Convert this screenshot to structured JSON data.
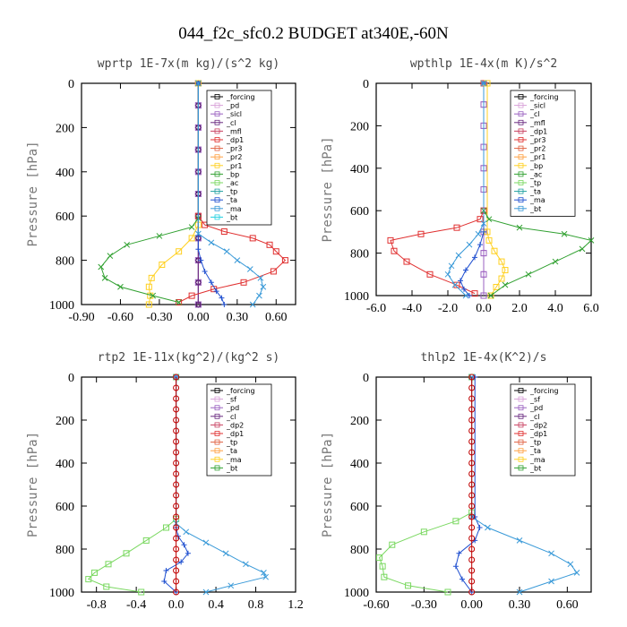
{
  "figure_title": "044_f2c_sfc0.2  BUDGET at340E,-60N",
  "chart_data": [
    {
      "type": "line",
      "title": "wprtp  1E-7x(m kg)/(s^2 kg)",
      "ylabel": "Pressure [hPa]",
      "xlim": [
        -0.9,
        0.75
      ],
      "ylim": [
        1000,
        0
      ],
      "xticks": [
        "-0.90",
        "-0.60",
        "-0.30",
        "0.00",
        "0.30",
        "0.60"
      ],
      "xtick_values": [
        -0.9,
        -0.6,
        -0.3,
        0.0,
        0.3,
        0.6
      ],
      "yticks": [
        "0",
        "200",
        "400",
        "600",
        "800",
        "1000"
      ],
      "ytick_values": [
        0,
        200,
        400,
        600,
        800,
        1000
      ],
      "legend": [
        "_forcing",
        "_pd",
        "_sicl",
        "_cl",
        "_mfl",
        "_dp1",
        "_pr3",
        "_pr2",
        "_pr1",
        "_bp",
        "_ac",
        "_tp",
        "_ta",
        "_ma",
        "_bt"
      ],
      "series": [
        {
          "name": "_forcing",
          "color": "#000000",
          "marker": "o",
          "x": [
            0,
            0,
            0,
            0,
            0,
            0,
            0,
            0,
            0,
            0,
            0
          ],
          "y": [
            0,
            100,
            200,
            300,
            400,
            500,
            600,
            700,
            800,
            900,
            1000
          ]
        },
        {
          "name": "_pd",
          "color": "#d8a0d8",
          "marker": "s",
          "x": [
            0,
            0,
            0,
            0,
            0,
            0,
            0,
            0,
            0,
            0,
            0
          ],
          "y": [
            0,
            100,
            200,
            300,
            400,
            500,
            600,
            700,
            800,
            900,
            1000
          ]
        },
        {
          "name": "_sicl",
          "color": "#9a60c0",
          "marker": "s",
          "x": [
            0,
            0,
            0,
            0,
            0,
            0,
            0,
            0,
            0,
            0,
            0
          ],
          "y": [
            0,
            100,
            200,
            300,
            400,
            500,
            600,
            700,
            800,
            900,
            1000
          ]
        },
        {
          "name": "_cl",
          "color": "#6a2a80",
          "marker": "d",
          "x": [
            0,
            0,
            0,
            0,
            0,
            0,
            0,
            0,
            0,
            0,
            0
          ],
          "y": [
            0,
            100,
            200,
            300,
            400,
            500,
            600,
            700,
            800,
            900,
            1000
          ]
        },
        {
          "name": "_dp1",
          "color": "#e03030",
          "marker": "s",
          "x": [
            0,
            0,
            0.05,
            0.2,
            0.42,
            0.55,
            0.6,
            0.67,
            0.58,
            0.35,
            0.12,
            -0.05,
            -0.15
          ],
          "y": [
            0,
            600,
            640,
            670,
            700,
            730,
            760,
            800,
            850,
            900,
            930,
            960,
            990
          ]
        },
        {
          "name": "_pr1",
          "color": "#ffd020",
          "marker": "s",
          "x": [
            0,
            0,
            -0.05,
            -0.15,
            -0.28,
            -0.36,
            -0.38,
            -0.37,
            -0.38
          ],
          "y": [
            0,
            640,
            700,
            760,
            820,
            880,
            920,
            960,
            1000
          ]
        },
        {
          "name": "_bp",
          "color": "#30a030",
          "marker": "x",
          "x": [
            0,
            0,
            -0.05,
            -0.3,
            -0.55,
            -0.68,
            -0.75,
            -0.72,
            -0.6,
            -0.35,
            -0.15
          ],
          "y": [
            0,
            610,
            650,
            690,
            730,
            780,
            830,
            880,
            920,
            960,
            990
          ]
        },
        {
          "name": "_ta",
          "color": "#2050d0",
          "marker": "+",
          "x": [
            0,
            0,
            0.02,
            0.05,
            0.1,
            0.14,
            0.18,
            0.2
          ],
          "y": [
            0,
            750,
            800,
            850,
            900,
            940,
            970,
            1000
          ]
        },
        {
          "name": "_ma",
          "color": "#3a9ad8",
          "marker": "x",
          "x": [
            0,
            0,
            0.1,
            0.22,
            0.3,
            0.4,
            0.48,
            0.5,
            0.47,
            0.42
          ],
          "y": [
            0,
            680,
            720,
            760,
            800,
            840,
            880,
            920,
            960,
            1000
          ]
        }
      ]
    },
    {
      "type": "line",
      "title": "wpthlp  1E-4x(m K)/s^2",
      "ylabel": "Pressure [hPa]",
      "xlim": [
        -6.0,
        6.0
      ],
      "ylim": [
        1000,
        0
      ],
      "xticks": [
        "-6.0",
        "-4.0",
        "-2.0",
        "0.0",
        "2.0",
        "4.0",
        "6.0"
      ],
      "xtick_values": [
        -6,
        -4,
        -2,
        0,
        2,
        4,
        6
      ],
      "yticks": [
        "0",
        "200",
        "400",
        "600",
        "800",
        "1000"
      ],
      "ytick_values": [
        0,
        200,
        400,
        600,
        800,
        1000
      ],
      "legend": [
        "_forcing",
        "_sicl",
        "_cl",
        "_mfl",
        "_dp1",
        "_pr3",
        "_pr2",
        "_pr1",
        "_bp",
        "_ac",
        "_tp",
        "_ta",
        "_ma",
        "_bt"
      ],
      "series": [
        {
          "name": "_forcing",
          "color": "#d8a0d8",
          "marker": "s",
          "x": [
            0,
            0,
            0,
            0,
            0,
            0,
            0,
            0,
            0,
            0,
            0
          ],
          "y": [
            0,
            100,
            200,
            300,
            400,
            500,
            600,
            700,
            800,
            900,
            1000
          ]
        },
        {
          "name": "_sicl",
          "color": "#9a60c0",
          "marker": "s",
          "x": [
            0,
            0,
            0,
            0,
            0,
            0,
            0,
            0,
            0,
            0,
            0
          ],
          "y": [
            0,
            100,
            200,
            300,
            400,
            500,
            600,
            700,
            800,
            900,
            1000
          ]
        },
        {
          "name": "_dp1",
          "color": "#e03030",
          "marker": "s",
          "x": [
            0,
            0,
            -0.2,
            -1.5,
            -3.5,
            -5.2,
            -5.0,
            -4.3,
            -3.0,
            -1.5,
            -0.5
          ],
          "y": [
            0,
            600,
            640,
            680,
            710,
            740,
            790,
            840,
            900,
            950,
            990
          ]
        },
        {
          "name": "_pr1",
          "color": "#ffd020",
          "marker": "s",
          "x": [
            0.2,
            0.2,
            0.3,
            0.6,
            1.0,
            1.2,
            1.0,
            0.7,
            0.4
          ],
          "y": [
            0,
            700,
            740,
            790,
            840,
            880,
            920,
            960,
            1000
          ]
        },
        {
          "name": "_bp",
          "color": "#30a030",
          "marker": "x",
          "x": [
            0,
            0,
            0.3,
            2.0,
            4.5,
            6.0,
            5.5,
            4.0,
            2.5,
            1.2,
            0.4
          ],
          "y": [
            0,
            600,
            640,
            680,
            710,
            740,
            780,
            840,
            900,
            950,
            1000
          ]
        },
        {
          "name": "_ta",
          "color": "#2050d0",
          "marker": "+",
          "x": [
            0,
            0,
            -0.2,
            -0.5,
            -1.0,
            -1.3,
            -1.1,
            -0.8
          ],
          "y": [
            0,
            700,
            760,
            820,
            880,
            930,
            970,
            1000
          ]
        },
        {
          "name": "_ma",
          "color": "#3a9ad8",
          "marker": "x",
          "x": [
            0,
            0,
            -0.3,
            -0.8,
            -1.4,
            -1.8,
            -2.0,
            -1.6,
            -1.0
          ],
          "y": [
            0,
            660,
            710,
            760,
            810,
            860,
            900,
            950,
            1000
          ]
        }
      ]
    },
    {
      "type": "line",
      "title": "rtp2  1E-11x(kg^2)/(kg^2 s)",
      "ylabel": "Pressure [hPa]",
      "xlim": [
        -0.95,
        1.2
      ],
      "ylim": [
        1000,
        0
      ],
      "xticks": [
        "-0.8",
        "-0.4",
        "0.0",
        "0.4",
        "0.8",
        "1.2"
      ],
      "xtick_values": [
        -0.8,
        -0.4,
        0.0,
        0.4,
        0.8,
        1.2
      ],
      "yticks": [
        "0",
        "200",
        "400",
        "600",
        "800",
        "1000"
      ],
      "ytick_values": [
        0,
        200,
        400,
        600,
        800,
        1000
      ],
      "legend": [
        "_forcing",
        "_sf",
        "_pd",
        "_cl",
        "_dp2",
        "_dp1",
        "_tp",
        "_ta",
        "_ma",
        "_bt"
      ],
      "series": [
        {
          "name": "_dp1",
          "color": "#7ad860",
          "marker": "s",
          "x": [
            0,
            0,
            -0.1,
            -0.3,
            -0.5,
            -0.68,
            -0.82,
            -0.88,
            -0.7,
            -0.35
          ],
          "y": [
            0,
            660,
            700,
            760,
            820,
            870,
            910,
            940,
            975,
            1000
          ]
        },
        {
          "name": "_ta",
          "color": "#2050d0",
          "marker": "+",
          "x": [
            0,
            0,
            0.02,
            0.08,
            0.12,
            0.05,
            -0.1,
            -0.12,
            0.0
          ],
          "y": [
            0,
            700,
            740,
            780,
            820,
            860,
            900,
            950,
            1000
          ]
        },
        {
          "name": "_ma",
          "color": "#3a9ad8",
          "marker": "x",
          "x": [
            0,
            0,
            0.1,
            0.3,
            0.5,
            0.7,
            0.88,
            0.9,
            0.55,
            0.3
          ],
          "y": [
            0,
            680,
            720,
            770,
            820,
            870,
            910,
            930,
            970,
            1000
          ]
        },
        {
          "name": "_forcing",
          "color": "#c00000",
          "marker": "o",
          "x": [
            0,
            0,
            0,
            0,
            0,
            0,
            0,
            0,
            0,
            0,
            0,
            0,
            0,
            0,
            0,
            0,
            0,
            0,
            0,
            0,
            0
          ],
          "y": [
            0,
            50,
            100,
            150,
            200,
            250,
            300,
            350,
            400,
            450,
            500,
            550,
            600,
            650,
            700,
            750,
            800,
            850,
            900,
            950,
            1000
          ]
        }
      ]
    },
    {
      "type": "line",
      "title": "thlp2  1E-4x(K^2)/s",
      "ylabel": "Pressure [hPa]",
      "xlim": [
        -0.6,
        0.75
      ],
      "ylim": [
        1000,
        0
      ],
      "xticks": [
        "-0.60",
        "-0.30",
        "0.00",
        "0.30",
        "0.60"
      ],
      "xtick_values": [
        -0.6,
        -0.3,
        0.0,
        0.3,
        0.6
      ],
      "yticks": [
        "0",
        "200",
        "400",
        "600",
        "800",
        "1000"
      ],
      "ytick_values": [
        0,
        200,
        400,
        600,
        800,
        1000
      ],
      "legend": [
        "_forcing",
        "_sf",
        "_pd",
        "_cl",
        "_dp2",
        "_dp1",
        "_tp",
        "_ta",
        "_ma",
        "_bt"
      ],
      "series": [
        {
          "name": "_dp1",
          "color": "#7ad860",
          "marker": "s",
          "x": [
            0,
            0,
            -0.1,
            -0.3,
            -0.5,
            -0.58,
            -0.56,
            -0.55,
            -0.4,
            -0.15
          ],
          "y": [
            0,
            630,
            670,
            720,
            780,
            840,
            880,
            930,
            970,
            1000
          ]
        },
        {
          "name": "_ta",
          "color": "#2050d0",
          "marker": "+",
          "x": [
            0.02,
            0.02,
            0.05,
            0.02,
            -0.08,
            -0.1,
            -0.06,
            0.0
          ],
          "y": [
            0,
            650,
            700,
            760,
            820,
            880,
            940,
            1000
          ]
        },
        {
          "name": "_ma",
          "color": "#3a9ad8",
          "marker": "x",
          "x": [
            0,
            0,
            0.1,
            0.3,
            0.5,
            0.62,
            0.66,
            0.5,
            0.3
          ],
          "y": [
            0,
            650,
            700,
            760,
            820,
            870,
            910,
            950,
            1000
          ]
        },
        {
          "name": "_forcing",
          "color": "#c00000",
          "marker": "o",
          "x": [
            0,
            0,
            0,
            0,
            0,
            0,
            0,
            0,
            0,
            0,
            0,
            0,
            0,
            0,
            0,
            0,
            0,
            0,
            0,
            0,
            0
          ],
          "y": [
            0,
            50,
            100,
            150,
            200,
            250,
            300,
            350,
            400,
            450,
            500,
            550,
            600,
            650,
            700,
            750,
            800,
            850,
            900,
            950,
            1000
          ]
        }
      ]
    }
  ]
}
